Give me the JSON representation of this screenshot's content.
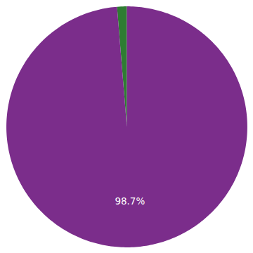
{
  "chart_data": {
    "type": "pie",
    "values": [
      1.3,
      98.7
    ],
    "colors": [
      "#2e7d32",
      "#7b2d8b"
    ],
    "value_labels": [
      null,
      "98.7%"
    ],
    "data_labels": true
  }
}
